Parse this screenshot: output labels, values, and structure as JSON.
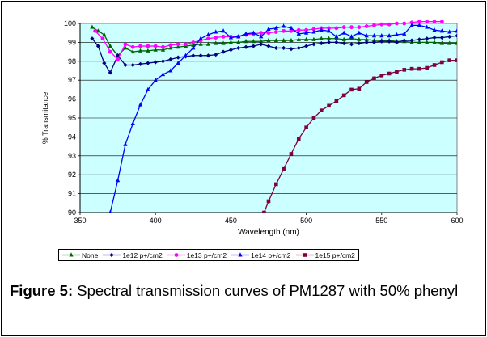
{
  "chart_data": {
    "type": "line",
    "xlabel": "Wavelength (nm)",
    "ylabel": "% Transmitance",
    "xlim": [
      350,
      600
    ],
    "ylim": [
      90,
      100
    ],
    "xticks": [
      350,
      400,
      450,
      500,
      550,
      600
    ],
    "yticks": [
      90,
      91,
      92,
      93,
      94,
      95,
      96,
      97,
      98,
      99,
      100
    ],
    "grid": "horizontal",
    "plot_background": "#ccffff",
    "legend_position": "bottom",
    "series": [
      {
        "name": "None",
        "color": "#006600",
        "marker": "triangle",
        "x": [
          358,
          362,
          366,
          370,
          375,
          380,
          385,
          390,
          395,
          400,
          405,
          410,
          415,
          420,
          425,
          430,
          435,
          440,
          445,
          450,
          455,
          460,
          465,
          470,
          475,
          480,
          485,
          490,
          495,
          500,
          505,
          510,
          515,
          520,
          525,
          530,
          535,
          540,
          545,
          550,
          555,
          560,
          565,
          570,
          575,
          580,
          585,
          590,
          595,
          600
        ],
        "y": [
          99.8,
          99.6,
          99.4,
          98.8,
          98.3,
          98.7,
          98.5,
          98.55,
          98.55,
          98.6,
          98.6,
          98.7,
          98.75,
          98.8,
          98.85,
          98.9,
          98.9,
          98.95,
          98.95,
          99.0,
          99.0,
          99.05,
          99.05,
          99.05,
          99.1,
          99.1,
          99.1,
          99.1,
          99.15,
          99.15,
          99.15,
          99.2,
          99.2,
          99.2,
          99.15,
          99.2,
          99.15,
          99.15,
          99.1,
          99.1,
          99.1,
          99.05,
          99.05,
          99.0,
          99.0,
          99.0,
          99.0,
          98.95,
          98.95,
          98.95
        ]
      },
      {
        "name": "1e12 p+/cm2",
        "color": "#000080",
        "marker": "diamond",
        "x": [
          358,
          362,
          366,
          370,
          375,
          380,
          385,
          390,
          395,
          400,
          405,
          410,
          415,
          420,
          425,
          430,
          435,
          440,
          445,
          450,
          455,
          460,
          465,
          470,
          475,
          480,
          485,
          490,
          495,
          500,
          505,
          510,
          515,
          520,
          525,
          530,
          535,
          540,
          545,
          550,
          555,
          560,
          565,
          570,
          575,
          580,
          585,
          590,
          595,
          600
        ],
        "y": [
          99.2,
          98.8,
          97.9,
          97.4,
          98.3,
          97.8,
          97.8,
          97.85,
          97.9,
          97.95,
          98.0,
          98.1,
          98.2,
          98.25,
          98.3,
          98.3,
          98.3,
          98.35,
          98.5,
          98.6,
          98.7,
          98.75,
          98.8,
          98.9,
          98.8,
          98.7,
          98.7,
          98.65,
          98.7,
          98.8,
          98.9,
          98.95,
          99.0,
          99.0,
          98.95,
          98.9,
          98.95,
          99.0,
          99.0,
          99.05,
          99.05,
          99.0,
          99.1,
          99.1,
          99.15,
          99.2,
          99.25,
          99.25,
          99.3,
          99.35
        ]
      },
      {
        "name": "1e13 p+/cm2",
        "color": "#ff00ff",
        "marker": "circle",
        "x": [
          360,
          365,
          370,
          375,
          380,
          385,
          390,
          395,
          400,
          405,
          410,
          415,
          420,
          425,
          430,
          435,
          440,
          445,
          450,
          455,
          460,
          465,
          470,
          475,
          480,
          485,
          490,
          495,
          500,
          505,
          510,
          515,
          520,
          525,
          530,
          535,
          540,
          545,
          550,
          555,
          560,
          565,
          570,
          575,
          580,
          585,
          590
        ],
        "y": [
          99.6,
          99.2,
          98.5,
          98.1,
          98.9,
          98.75,
          98.8,
          98.8,
          98.8,
          98.75,
          98.85,
          98.9,
          98.9,
          99.0,
          99.1,
          99.2,
          99.25,
          99.3,
          99.3,
          99.3,
          99.4,
          99.45,
          99.5,
          99.5,
          99.55,
          99.6,
          99.6,
          99.65,
          99.65,
          99.7,
          99.75,
          99.75,
          99.75,
          99.8,
          99.8,
          99.8,
          99.85,
          99.9,
          99.95,
          99.95,
          100.0,
          100.0,
          100.05,
          100.1,
          100.1,
          100.1,
          100.1
        ]
      },
      {
        "name": "1e14 p+/cm2",
        "color": "#0000ff",
        "marker": "triangle",
        "x": [
          370,
          375,
          380,
          385,
          390,
          395,
          400,
          405,
          410,
          415,
          420,
          425,
          430,
          435,
          440,
          445,
          450,
          455,
          460,
          465,
          470,
          475,
          480,
          485,
          490,
          495,
          500,
          505,
          510,
          515,
          520,
          525,
          530,
          535,
          540,
          545,
          550,
          555,
          560,
          565,
          570,
          575,
          580,
          585,
          590,
          595,
          600
        ],
        "y": [
          90.0,
          91.7,
          93.6,
          94.7,
          95.7,
          96.5,
          97.0,
          97.3,
          97.5,
          97.9,
          98.3,
          98.7,
          99.2,
          99.4,
          99.55,
          99.6,
          99.25,
          99.3,
          99.45,
          99.5,
          99.3,
          99.7,
          99.75,
          99.85,
          99.75,
          99.45,
          99.5,
          99.55,
          99.65,
          99.6,
          99.3,
          99.5,
          99.3,
          99.5,
          99.35,
          99.35,
          99.35,
          99.35,
          99.4,
          99.45,
          99.9,
          99.9,
          99.8,
          99.65,
          99.6,
          99.55,
          99.6
        ]
      },
      {
        "name": "1e15 p+/cm2",
        "color": "#800040",
        "marker": "square",
        "x": [
          472,
          475,
          480,
          485,
          490,
          495,
          500,
          505,
          510,
          515,
          520,
          525,
          530,
          535,
          540,
          545,
          550,
          555,
          560,
          565,
          570,
          575,
          580,
          585,
          590,
          595,
          600
        ],
        "y": [
          90.0,
          90.6,
          91.5,
          92.3,
          93.1,
          93.9,
          94.5,
          95.0,
          95.4,
          95.65,
          95.9,
          96.2,
          96.5,
          96.55,
          96.9,
          97.1,
          97.25,
          97.35,
          97.45,
          97.55,
          97.6,
          97.6,
          97.65,
          97.8,
          97.95,
          98.05,
          98.05
        ]
      }
    ]
  },
  "caption": {
    "label": "Figure 5:",
    "text": " Spectral transmission curves of PM1287 with 50% phenyl"
  }
}
